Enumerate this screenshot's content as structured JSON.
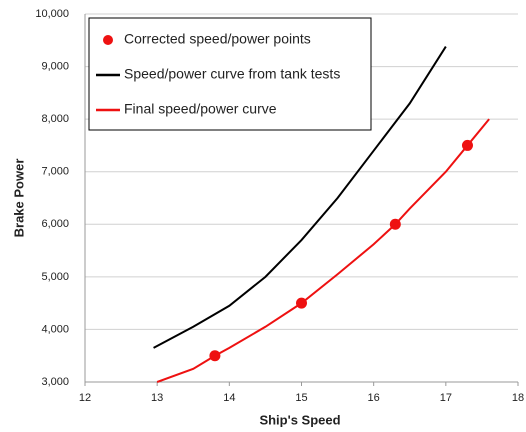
{
  "chart_data": {
    "type": "line",
    "x_label": "Ship's Speed",
    "y_label": "Brake Power",
    "xlim": [
      12,
      18
    ],
    "xticks": [
      12,
      13,
      14,
      15,
      16,
      17,
      18
    ],
    "ylim": [
      3000,
      10000
    ],
    "yticks": [
      {
        "value": 3000,
        "label": "3,000"
      },
      {
        "value": 4000,
        "label": "4,000"
      },
      {
        "value": 5000,
        "label": "5,000"
      },
      {
        "value": 6000,
        "label": "6,000"
      },
      {
        "value": 7000,
        "label": "7,000"
      },
      {
        "value": 8000,
        "label": "8,000"
      },
      {
        "value": 9000,
        "label": "9,000"
      },
      {
        "value": 10000,
        "label": "10,000"
      }
    ],
    "grid": true,
    "legend": "upper left",
    "series": [
      {
        "name": "Corrected speed/power points",
        "color": "#ee1111",
        "type": "scatter",
        "x": [
          13.8,
          15,
          16.3,
          17.3
        ],
        "values": [
          3500,
          4500,
          6000,
          7500
        ]
      },
      {
        "name": "Speed/power curve from tank tests",
        "color": "#000000",
        "type": "line",
        "x": [
          12.95,
          13.5,
          14,
          14.5,
          15,
          15.5,
          16,
          16.5,
          17
        ],
        "values": [
          3650,
          4050,
          4450,
          5000,
          5700,
          6500,
          7400,
          8300,
          9380
        ]
      },
      {
        "name": "Final speed/power curve",
        "color": "#ee1111",
        "type": "line",
        "x": [
          13,
          13.5,
          13.8,
          14,
          14.5,
          15,
          15.5,
          16,
          16.3,
          16.5,
          17,
          17.3,
          17.6
        ],
        "values": [
          3000,
          3250,
          3500,
          3650,
          4050,
          4500,
          5050,
          5620,
          6000,
          6300,
          7000,
          7500,
          8000
        ]
      }
    ]
  }
}
